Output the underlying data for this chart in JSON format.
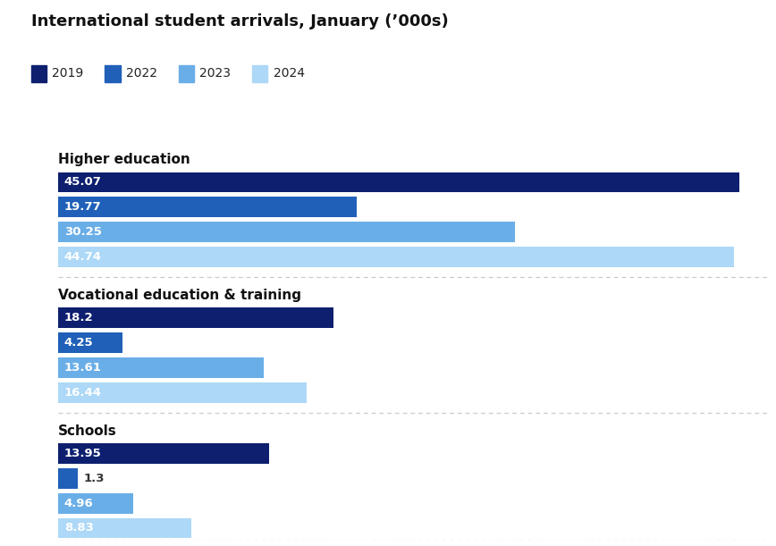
{
  "title": "International student arrivals, January (’000s)",
  "legend_labels": [
    "2019",
    "2022",
    "2023",
    "2024"
  ],
  "colors": [
    "#0d1f6e",
    "#2060b8",
    "#6aaee8",
    "#add8f7"
  ],
  "sections": [
    {
      "label": "Higher education",
      "values": [
        45.07,
        19.77,
        30.25,
        44.74
      ]
    },
    {
      "label": "Vocational education & training",
      "values": [
        18.2,
        4.25,
        13.61,
        16.44
      ]
    },
    {
      "label": "Schools",
      "values": [
        13.95,
        1.3,
        4.96,
        8.83
      ]
    }
  ],
  "xlim": [
    0,
    47
  ],
  "bar_height": 0.82,
  "label_fontsize": 9.5,
  "title_fontsize": 13,
  "section_label_fontsize": 11,
  "background_color": "#ffffff",
  "text_color_dark": "#ffffff",
  "text_color_light": "#333333",
  "separator_color": "#cccccc",
  "inside_label_threshold": 3.0
}
